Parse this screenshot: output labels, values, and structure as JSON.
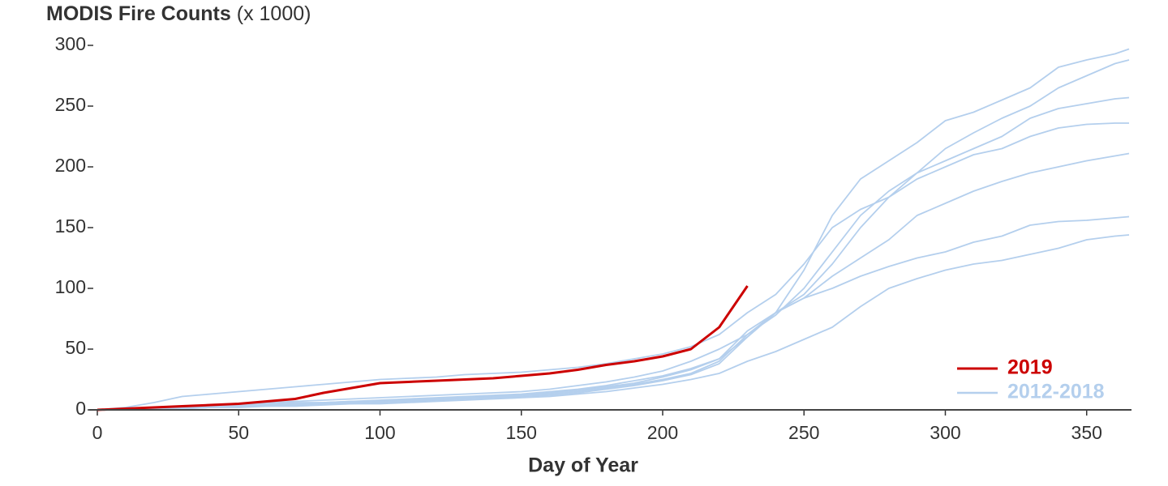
{
  "chart_data": {
    "type": "line",
    "title": "MODIS Fire Counts",
    "title_suffix": "(x 1000)",
    "xlabel": "Day of Year",
    "x": [
      0,
      10,
      20,
      30,
      40,
      50,
      60,
      70,
      80,
      90,
      100,
      110,
      120,
      130,
      140,
      150,
      160,
      170,
      180,
      190,
      200,
      210,
      220,
      230,
      240,
      250,
      260,
      270,
      280,
      290,
      300,
      310,
      320,
      330,
      340,
      350,
      360,
      365
    ],
    "xlim": [
      0,
      365
    ],
    "xticks": [
      0,
      50,
      100,
      150,
      200,
      250,
      300,
      350
    ],
    "ylim": [
      0,
      300
    ],
    "yticks": [
      0,
      50,
      100,
      150,
      200,
      250,
      300
    ],
    "legend": "lower right",
    "series": [
      {
        "name": "2019",
        "color": "#cc0000",
        "values": [
          0,
          1,
          2,
          3,
          4,
          5,
          7,
          9,
          14,
          18,
          22,
          23,
          24,
          25,
          26,
          28,
          30,
          33,
          37,
          40,
          44,
          50,
          68,
          102,
          null,
          null,
          null,
          null,
          null,
          null,
          null,
          null,
          null,
          null,
          null,
          null,
          null,
          null
        ]
      },
      {
        "name": "2012-2018",
        "color": "#b4cfed",
        "values": [
          [
            0,
            2,
            6,
            11,
            13,
            15,
            17,
            19,
            21,
            23,
            25,
            26,
            27,
            29,
            30,
            31,
            33,
            35,
            38,
            42,
            46,
            52,
            62,
            80,
            95,
            120,
            150,
            165,
            175,
            195,
            205,
            215,
            225,
            240,
            248,
            252,
            256,
            257
          ],
          [
            0,
            1,
            2,
            3,
            4,
            5,
            6,
            7,
            8,
            9,
            10,
            11,
            12,
            13,
            14,
            15,
            17,
            20,
            23,
            27,
            32,
            40,
            50,
            62,
            78,
            100,
            130,
            160,
            180,
            195,
            215,
            228,
            240,
            250,
            265,
            275,
            285,
            288
          ],
          [
            0,
            1,
            1,
            2,
            3,
            4,
            5,
            6,
            6,
            7,
            8,
            9,
            10,
            11,
            12,
            13,
            15,
            17,
            20,
            24,
            28,
            34,
            42,
            60,
            80,
            115,
            160,
            190,
            205,
            220,
            238,
            245,
            255,
            265,
            282,
            288,
            293,
            297
          ],
          [
            0,
            1,
            1,
            2,
            3,
            3,
            4,
            5,
            6,
            7,
            7,
            8,
            9,
            10,
            11,
            12,
            14,
            16,
            19,
            22,
            27,
            33,
            42,
            65,
            80,
            95,
            120,
            150,
            175,
            190,
            200,
            210,
            215,
            225,
            232,
            235,
            236,
            236
          ],
          [
            0,
            0,
            1,
            2,
            2,
            3,
            4,
            4,
            5,
            6,
            7,
            8,
            9,
            10,
            11,
            12,
            13,
            15,
            18,
            21,
            25,
            30,
            40,
            62,
            80,
            92,
            110,
            125,
            140,
            160,
            170,
            180,
            188,
            195,
            200,
            205,
            209,
            211
          ],
          [
            0,
            0,
            1,
            1,
            2,
            3,
            3,
            4,
            5,
            5,
            6,
            7,
            8,
            9,
            10,
            11,
            12,
            14,
            17,
            20,
            24,
            29,
            38,
            60,
            80,
            92,
            100,
            110,
            118,
            125,
            130,
            138,
            143,
            152,
            155,
            156,
            158,
            159
          ],
          [
            0,
            0,
            1,
            1,
            2,
            2,
            3,
            3,
            4,
            5,
            5,
            6,
            7,
            8,
            9,
            10,
            11,
            13,
            15,
            18,
            21,
            25,
            30,
            40,
            48,
            58,
            68,
            85,
            100,
            108,
            115,
            120,
            123,
            128,
            133,
            140,
            143,
            144
          ]
        ]
      }
    ]
  }
}
